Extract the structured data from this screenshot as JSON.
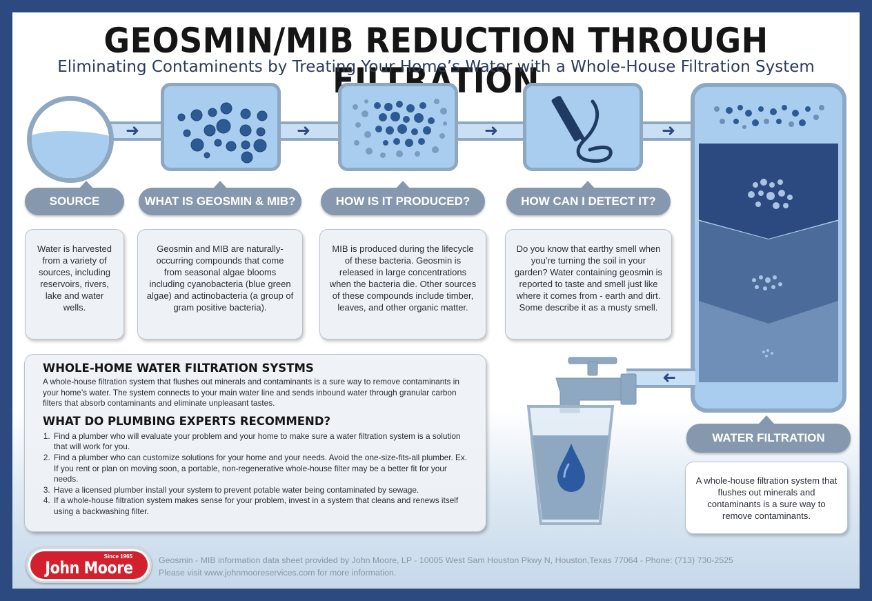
{
  "title": "GEOSMIN/MIB REDUCTION THROUGH FILTRATION",
  "subtitle": "Eliminating Contaminents by Treating Your Home’s Water with a Whole-House Filtration System",
  "steps": [
    {
      "label": "SOURCE",
      "text": "Water is harvested from a variety of sources, including reservoirs, rivers, lake and water wells."
    },
    {
      "label": "WHAT IS GEOSMIN & MIB?",
      "text": "Geosmin and MIB are naturally-occurring compounds that come from seasonal algae blooms including cyanobacteria (blue green algae) and actinobacteria (a group of gram positive bacteria)."
    },
    {
      "label": "HOW IS IT PRODUCED?",
      "text": "MIB is produced during the lifecycle of these bacteria. Geosmin is released in large concentrations when the bacteria die. Other sources of these compounds include timber, leaves, and other organic matter."
    },
    {
      "label": "HOW CAN I DETECT IT?",
      "text": "Do you know that earthy smell when you’re turning the soil in your garden? Water containing geosmin is reported to taste and smell just like where it comes from - earth and dirt. Some describe it as a musty smell."
    }
  ],
  "filtration": {
    "label": "WATER FILTRATION",
    "text": "A whole-house filtration system that flushes out minerals and contaminants is a sure way to remove contaminants."
  },
  "info": {
    "heading1": "WHOLE-HOME WATER FILTRATION SYSTMS",
    "para1": "A whole-house filtration system that flushes out minerals and contaminants is a sure way to remove contaminants in your home’s water. The system connects to your main water line and sends inbound water through granular carbon filters that absorb contaminants and eliminate unpleasant tastes.",
    "heading2": "WHAT DO PLUMBING EXPERTS RECOMMEND?",
    "items": [
      "Find a plumber who will evaluate your problem and your home to make sure a water filtration system is a solution that will work for you.",
      "Find a plumber who can customize solutions for your home and your needs. Avoid the one-size-fits-all plumber. Ex. If you rent or plan on moving soon, a portable, non-regenerative whole-house filter may be a better fit for your needs.",
      "Have a licensed plumber install your system to prevent potable water being contaminated by sewage.",
      "If a whole-house filtration system makes sense for your problem, invest in a system that cleans and renews itself using a backwashing filter."
    ]
  },
  "logo": {
    "since": "Since 1965",
    "name": "John Moore"
  },
  "footer": {
    "line1": "Geosmin - MIB information data sheet provided by John Moore, LP - 10005 West Sam Houston Pkwy N, Houston,Texas 77064 - Phone: (713) 730-2525",
    "line2": "Please visit www.johnmooreservices.com for more information."
  },
  "icons": {
    "source": "water-circle-icon",
    "particles": "particle-cluster-icon",
    "smell": "clothespin-nose-icon",
    "faucet": "faucet-icon",
    "glass": "water-glass-icon",
    "arrow": "arrow-right-icon"
  },
  "colors": {
    "frame": "#2c4a80",
    "pipe": "#c8dff4",
    "pipe_border": "#8ea8c2",
    "tile_fill": "#a9cdee",
    "particle": "#2e5a93",
    "pill": "#8598ad",
    "layer_dark": "#2c4a80",
    "layer_mid": "#4b6c9b",
    "layer_light": "#6f8fb8",
    "logo_red": "#d2202f"
  }
}
